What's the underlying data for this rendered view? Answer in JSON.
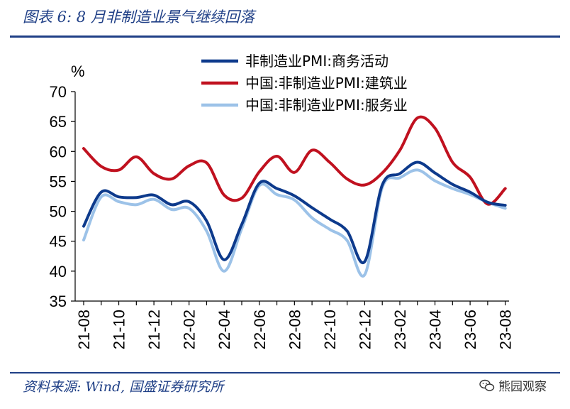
{
  "figure": {
    "title": "图表 6:  8 月非制造业景气继续回落",
    "source": "资料来源:  Wind,  国盛证券研究所",
    "watermark": "熊园观察"
  },
  "chart_data": {
    "type": "line",
    "ylabel": "%",
    "ylim": [
      35,
      70
    ],
    "yticks": [
      35,
      40,
      45,
      50,
      55,
      60,
      65,
      70
    ],
    "x": [
      "21-08",
      "21-09",
      "21-10",
      "21-11",
      "21-12",
      "22-01",
      "22-02",
      "22-03",
      "22-04",
      "22-05",
      "22-06",
      "22-07",
      "22-08",
      "22-09",
      "22-10",
      "22-11",
      "22-12",
      "23-01",
      "23-02",
      "23-03",
      "23-04",
      "23-05",
      "23-06",
      "23-07",
      "23-08"
    ],
    "xtick_labels": [
      "21-08",
      "21-10",
      "21-12",
      "22-02",
      "22-04",
      "22-06",
      "22-08",
      "22-10",
      "22-12",
      "23-02",
      "23-04",
      "23-06",
      "23-08"
    ],
    "grid": false,
    "legend_position": "top-right",
    "series": [
      {
        "name": "非制造业PMI:商务活动",
        "color": "#0d3a8c",
        "values": [
          47.5,
          53.2,
          52.4,
          52.3,
          52.7,
          51.1,
          51.6,
          48.4,
          41.9,
          47.8,
          54.7,
          53.8,
          52.6,
          50.6,
          48.7,
          46.7,
          41.6,
          54.4,
          56.3,
          58.2,
          56.4,
          54.5,
          53.2,
          51.5,
          51.0
        ]
      },
      {
        "name": "中国:非制造业PMI:建筑业",
        "color": "#c0111f",
        "values": [
          60.5,
          57.5,
          56.9,
          59.1,
          56.3,
          55.4,
          57.6,
          58.1,
          52.7,
          52.2,
          56.6,
          59.2,
          56.5,
          60.2,
          58.2,
          55.4,
          54.4,
          56.4,
          60.2,
          65.6,
          63.9,
          58.2,
          55.7,
          51.2,
          53.8
        ]
      },
      {
        "name": "中国:非制造业PMI:服务业",
        "color": "#9cc2e8",
        "values": [
          45.2,
          52.4,
          51.6,
          51.1,
          52.0,
          50.3,
          50.5,
          46.7,
          40.0,
          47.1,
          54.3,
          52.8,
          51.9,
          48.9,
          47.0,
          45.1,
          39.4,
          54.0,
          55.6,
          56.9,
          55.1,
          53.8,
          52.8,
          51.5,
          50.5
        ]
      }
    ]
  }
}
